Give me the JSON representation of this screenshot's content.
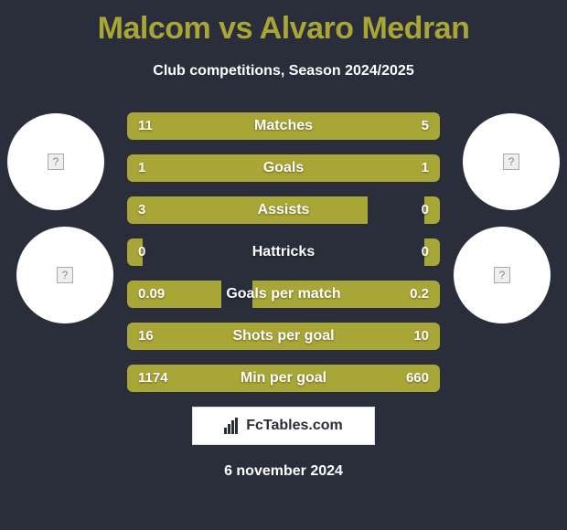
{
  "header": {
    "title": "Malcom vs Alvaro Medran",
    "subtitle": "Club competitions, Season 2024/2025",
    "title_color": "#a8a636"
  },
  "colors": {
    "background": "#2a2d3a",
    "bar": "#a8a636",
    "circle_bg": "#ffffff"
  },
  "stats": [
    {
      "label": "Matches",
      "left_val": "11",
      "right_val": "5",
      "left_pct": 77,
      "right_pct": 23
    },
    {
      "label": "Goals",
      "left_val": "1",
      "right_val": "1",
      "left_pct": 50,
      "right_pct": 50
    },
    {
      "label": "Assists",
      "left_val": "3",
      "right_val": "0",
      "left_pct": 77,
      "right_pct": 5
    },
    {
      "label": "Hattricks",
      "left_val": "0",
      "right_val": "0",
      "left_pct": 5,
      "right_pct": 5
    },
    {
      "label": "Goals per match",
      "left_val": "0.09",
      "right_val": "0.2",
      "left_pct": 30,
      "right_pct": 60
    },
    {
      "label": "Shots per goal",
      "left_val": "16",
      "right_val": "10",
      "left_pct": 100,
      "right_pct": 0
    },
    {
      "label": "Min per goal",
      "left_val": "1174",
      "right_val": "660",
      "left_pct": 100,
      "right_pct": 0
    }
  ],
  "logo": {
    "text": "FcTables.com"
  },
  "footer": {
    "date": "6 november 2024"
  }
}
